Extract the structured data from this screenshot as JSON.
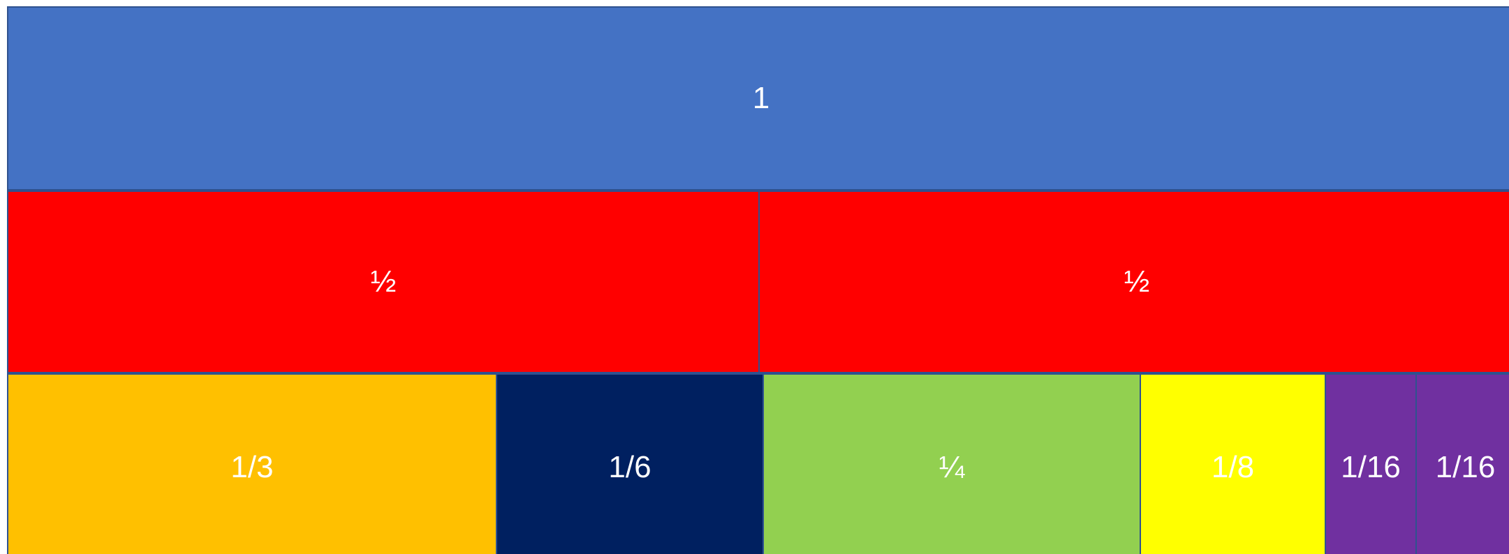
{
  "bars": {
    "whole": {
      "label": "1",
      "color": "#4472c4"
    },
    "halves": [
      {
        "label": "½",
        "color": "#ff0000"
      },
      {
        "label": "½",
        "color": "#ff0000"
      }
    ],
    "pieces": [
      {
        "label": "1/3",
        "color": "#ffc000"
      },
      {
        "label": "1/6",
        "color": "#002060"
      },
      {
        "label": "¼",
        "color": "#92d050"
      },
      {
        "label": "1/8",
        "color": "#ffff00"
      },
      {
        "label": "1/16",
        "color": "#7030a0"
      },
      {
        "label": "1/16",
        "color": "#7030a0"
      }
    ]
  }
}
